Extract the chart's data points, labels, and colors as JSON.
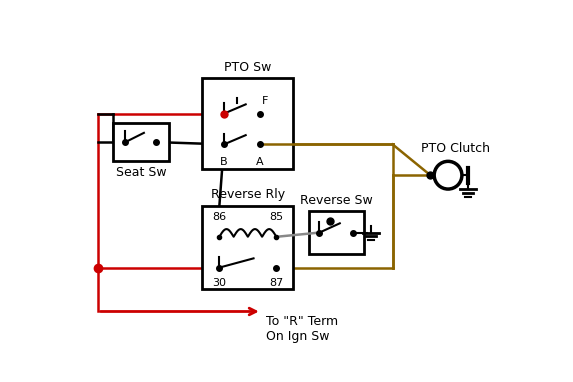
{
  "bg_color": "#ffffff",
  "black": "#000000",
  "red": "#cc0000",
  "brown": "#8B6400",
  "gray": "#888888",
  "labels": {
    "seat_sw": "Seat Sw",
    "pto_sw": "PTO Sw",
    "rev_rly": "Reverse Rly",
    "rev_sw": "Reverse Sw",
    "pto_clutch": "PTO Clutch",
    "F": "F",
    "B": "B",
    "A": "A",
    "86": "86",
    "85": "85",
    "30": "30",
    "87": "87",
    "to_r": "To \"R\" Term\nOn Ign Sw"
  }
}
